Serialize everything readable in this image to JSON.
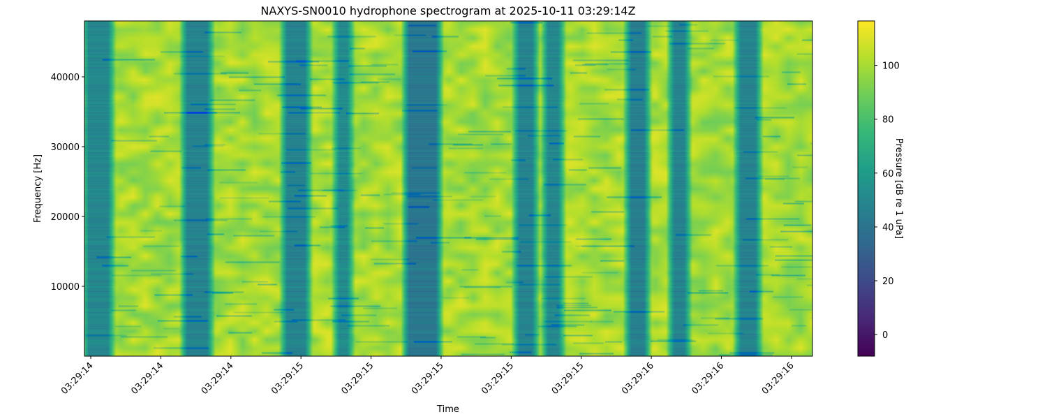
{
  "chart_data": {
    "type": "heatmap",
    "title": "NAXYS-SN0010 hydrophone spectrogram at 2025-10-11 03:29:14Z",
    "xlabel": "Time",
    "ylabel": "Frequency [Hz]",
    "colorbar_label": "Pressure [dB re 1 uPa]",
    "colormap": "viridis",
    "x_tick_labels": [
      "03:29:14",
      "03:29:14",
      "03:29:14",
      "03:29:15",
      "03:29:15",
      "03:29:15",
      "03:29:15",
      "03:29:15",
      "03:29:16",
      "03:29:16",
      "03:29:16"
    ],
    "x_tick_seconds": [
      14.4,
      14.6,
      14.8,
      15.0,
      15.2,
      15.4,
      15.6,
      15.8,
      16.0,
      16.2,
      16.4
    ],
    "xlim_seconds": [
      14.382,
      16.46
    ],
    "ylim": [
      0,
      48000
    ],
    "y_ticks": [
      10000,
      20000,
      30000,
      40000
    ],
    "y_tick_labels": [
      "10000",
      "20000",
      "30000",
      "40000"
    ],
    "clim": [
      -8,
      116.5
    ],
    "colorbar_ticks": [
      0,
      20,
      40,
      60,
      80,
      100
    ],
    "colorbar_tick_labels": [
      "0",
      "20",
      "40",
      "60",
      "80",
      "100"
    ],
    "background_level_db": 100,
    "low_level_bands": [
      {
        "start_s": 14.382,
        "end_s": 14.46,
        "level_db": 50
      },
      {
        "start_s": 14.663,
        "end_s": 14.743,
        "level_db": 48
      },
      {
        "start_s": 14.948,
        "end_s": 15.022,
        "level_db": 48
      },
      {
        "start_s": 15.097,
        "end_s": 15.143,
        "level_db": 52
      },
      {
        "start_s": 15.296,
        "end_s": 15.396,
        "level_db": 42
      },
      {
        "start_s": 15.611,
        "end_s": 15.671,
        "level_db": 48
      },
      {
        "start_s": 15.693,
        "end_s": 15.745,
        "level_db": 50
      },
      {
        "start_s": 15.93,
        "end_s": 15.99,
        "level_db": 46
      },
      {
        "start_s": 16.053,
        "end_s": 16.105,
        "level_db": 48
      },
      {
        "start_s": 16.243,
        "end_s": 16.308,
        "level_db": 48
      }
    ]
  }
}
